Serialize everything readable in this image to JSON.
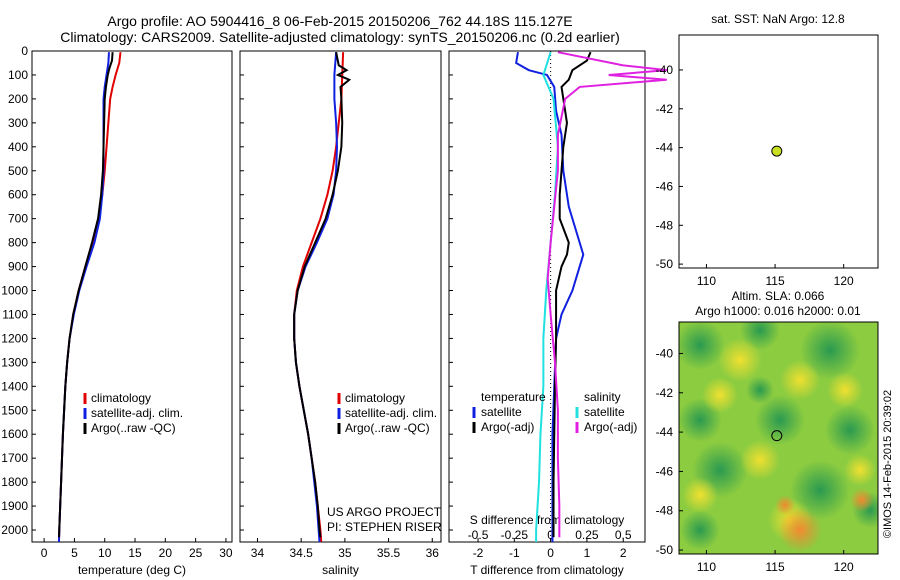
{
  "header": {
    "title_line1": "Argo profile: AO 5904416_8 06-Feb-2015 20150206_762 44.18S 115.127E",
    "title_line2": "Climatology: CARS2009. Satellite-adjusted climatology: synTS_20150206.nc (0.2d earlier)"
  },
  "colors": {
    "climatology": "#e00000",
    "satellite": "#1020e0",
    "argo": "#000000",
    "sal_satellite": "#20e0e0",
    "sal_argo": "#e020e0",
    "marker": "#c8e020"
  },
  "chart_data": [
    {
      "type": "line",
      "name": "temperature profile",
      "xlabel": "temperature (deg C)",
      "ylim": [
        2050,
        0
      ],
      "xlim": [
        -2,
        31
      ],
      "xticks": [
        "0",
        "5",
        "10",
        "15",
        "20",
        "25",
        "30"
      ],
      "yticks": [
        "0",
        "100",
        "200",
        "300",
        "400",
        "500",
        "600",
        "700",
        "800",
        "900",
        "1000",
        "1100",
        "1200",
        "1300",
        "1400",
        "1500",
        "1600",
        "1700",
        "1800",
        "1900",
        "2000"
      ],
      "legend": [
        "climatology",
        "satellite-adj. clim.",
        "Argo(..raw -QC)"
      ],
      "series": [
        {
          "name": "climatology",
          "points": [
            [
              12.6,
              5
            ],
            [
              12.4,
              50
            ],
            [
              11.8,
              100
            ],
            [
              11.3,
              150
            ],
            [
              10.9,
              200
            ],
            [
              10.6,
              300
            ],
            [
              10.3,
              400
            ],
            [
              10.0,
              500
            ],
            [
              9.6,
              600
            ],
            [
              9.0,
              700
            ],
            [
              8.0,
              800
            ],
            [
              6.8,
              900
            ],
            [
              5.7,
              1000
            ],
            [
              4.8,
              1100
            ],
            [
              4.2,
              1200
            ],
            [
              3.8,
              1300
            ],
            [
              3.5,
              1400
            ],
            [
              3.3,
              1500
            ],
            [
              3.1,
              1600
            ],
            [
              2.95,
              1700
            ],
            [
              2.8,
              1800
            ],
            [
              2.65,
              1900
            ],
            [
              2.5,
              2000
            ],
            [
              2.45,
              2050
            ]
          ]
        },
        {
          "name": "satellite-adj. clim.",
          "points": [
            [
              10.7,
              5
            ],
            [
              10.6,
              50
            ],
            [
              10.3,
              100
            ],
            [
              10.0,
              150
            ],
            [
              9.8,
              200
            ],
            [
              9.8,
              300
            ],
            [
              9.8,
              400
            ],
            [
              9.8,
              500
            ],
            [
              9.6,
              600
            ],
            [
              9.2,
              700
            ],
            [
              8.3,
              800
            ],
            [
              7.0,
              900
            ],
            [
              5.8,
              1000
            ],
            [
              4.9,
              1100
            ],
            [
              4.2,
              1200
            ],
            [
              3.8,
              1300
            ],
            [
              3.5,
              1400
            ],
            [
              3.3,
              1500
            ],
            [
              3.1,
              1600
            ],
            [
              2.95,
              1700
            ],
            [
              2.8,
              1800
            ],
            [
              2.65,
              1900
            ],
            [
              2.5,
              2000
            ],
            [
              2.45,
              2050
            ]
          ]
        },
        {
          "name": "Argo(..raw -QC)",
          "points": [
            [
              11.3,
              5
            ],
            [
              11.2,
              40
            ],
            [
              10.8,
              70
            ],
            [
              10.5,
              100
            ],
            [
              10.2,
              150
            ],
            [
              10.0,
              200
            ],
            [
              9.9,
              300
            ],
            [
              9.8,
              400
            ],
            [
              9.7,
              500
            ],
            [
              9.4,
              600
            ],
            [
              8.9,
              700
            ],
            [
              7.9,
              800
            ],
            [
              6.8,
              900
            ],
            [
              5.7,
              1000
            ],
            [
              4.8,
              1100
            ],
            [
              4.2,
              1200
            ],
            [
              3.8,
              1300
            ],
            [
              3.5,
              1400
            ],
            [
              3.3,
              1500
            ],
            [
              3.1,
              1600
            ],
            [
              2.95,
              1700
            ],
            [
              2.8,
              1800
            ],
            [
              2.65,
              1900
            ],
            [
              2.5,
              2000
            ],
            [
              2.45,
              2030
            ]
          ]
        }
      ]
    },
    {
      "type": "line",
      "name": "salinity profile",
      "xlabel": "salinity",
      "ylim": [
        2050,
        0
      ],
      "xlim": [
        33.8,
        36.1
      ],
      "xticks": [
        "34",
        "34.5",
        "35",
        "35.5",
        "36"
      ],
      "legend": [
        "climatology",
        "satellite-adj. clim.",
        "Argo(..raw -QC)"
      ],
      "annotation": [
        "US ARGO PROJECT",
        "PI: STEPHEN RISER"
      ],
      "series": [
        {
          "name": "climatology",
          "points": [
            [
              34.98,
              5
            ],
            [
              34.97,
              100
            ],
            [
              34.96,
              200
            ],
            [
              34.93,
              300
            ],
            [
              34.9,
              400
            ],
            [
              34.86,
              500
            ],
            [
              34.8,
              600
            ],
            [
              34.72,
              700
            ],
            [
              34.62,
              800
            ],
            [
              34.52,
              900
            ],
            [
              34.45,
              1000
            ],
            [
              34.42,
              1100
            ],
            [
              34.42,
              1200
            ],
            [
              34.44,
              1300
            ],
            [
              34.48,
              1400
            ],
            [
              34.53,
              1500
            ],
            [
              34.58,
              1600
            ],
            [
              34.62,
              1700
            ],
            [
              34.66,
              1800
            ],
            [
              34.69,
              1900
            ],
            [
              34.72,
              2000
            ],
            [
              34.73,
              2050
            ]
          ]
        },
        {
          "name": "satellite-adj. clim.",
          "points": [
            [
              34.9,
              5
            ],
            [
              34.88,
              100
            ],
            [
              34.88,
              200
            ],
            [
              34.9,
              300
            ],
            [
              34.91,
              400
            ],
            [
              34.9,
              500
            ],
            [
              34.87,
              600
            ],
            [
              34.8,
              700
            ],
            [
              34.68,
              800
            ],
            [
              34.55,
              900
            ],
            [
              34.46,
              1000
            ],
            [
              34.42,
              1100
            ],
            [
              34.42,
              1200
            ],
            [
              34.44,
              1300
            ],
            [
              34.48,
              1400
            ],
            [
              34.53,
              1500
            ],
            [
              34.58,
              1600
            ],
            [
              34.62,
              1700
            ],
            [
              34.65,
              1800
            ],
            [
              34.68,
              1900
            ],
            [
              34.7,
              2000
            ],
            [
              34.71,
              2050
            ]
          ]
        },
        {
          "name": "Argo(..raw -QC)",
          "points": [
            [
              34.9,
              5
            ],
            [
              34.93,
              60
            ],
            [
              35.02,
              80
            ],
            [
              34.92,
              100
            ],
            [
              35.05,
              120
            ],
            [
              34.95,
              150
            ],
            [
              34.96,
              200
            ],
            [
              34.97,
              300
            ],
            [
              34.96,
              400
            ],
            [
              34.92,
              500
            ],
            [
              34.86,
              600
            ],
            [
              34.78,
              700
            ],
            [
              34.66,
              800
            ],
            [
              34.54,
              900
            ],
            [
              34.46,
              1000
            ],
            [
              34.42,
              1100
            ],
            [
              34.42,
              1200
            ],
            [
              34.44,
              1300
            ],
            [
              34.48,
              1400
            ],
            [
              34.53,
              1500
            ],
            [
              34.58,
              1600
            ],
            [
              34.62,
              1700
            ],
            [
              34.66,
              1800
            ],
            [
              34.69,
              1900
            ],
            [
              34.71,
              2000
            ],
            [
              34.72,
              2030
            ]
          ]
        }
      ]
    },
    {
      "type": "line",
      "name": "difference from climatology",
      "xlabel": "T difference from climatology",
      "xlabel_top": "S difference from climatology",
      "ylim": [
        2050,
        0
      ],
      "xlim": [
        -2.8,
        2.6
      ],
      "xticks": [
        "-2",
        "-1",
        "0",
        "1",
        "2"
      ],
      "xticks_top": [
        "-0.5",
        "-0.25",
        "0",
        "0.25",
        "0.5"
      ],
      "legend_title_left": "temperature",
      "legend_title_right": "salinity",
      "legend": [
        "satellite",
        "Argo(-adj)",
        "satellite",
        "Argo(-adj)"
      ],
      "series": [
        {
          "name": "satellite",
          "points": [
            [
              -0.9,
              5
            ],
            [
              -0.95,
              50
            ],
            [
              -0.6,
              80
            ],
            [
              -0.1,
              100
            ],
            [
              0.1,
              150
            ],
            [
              0.15,
              250
            ],
            [
              0.3,
              350
            ],
            [
              0.35,
              500
            ],
            [
              0.5,
              650
            ],
            [
              0.7,
              750
            ],
            [
              0.9,
              850
            ],
            [
              0.6,
              1000
            ],
            [
              0.3,
              1100
            ],
            [
              0.15,
              1200
            ],
            [
              0.1,
              1400
            ],
            [
              0.05,
              1600
            ],
            [
              0.05,
              1800
            ],
            [
              0.05,
              2000
            ],
            [
              0.05,
              2050
            ]
          ]
        },
        {
          "name": "Argo(-adj)",
          "points": [
            [
              1.1,
              5
            ],
            [
              1.0,
              40
            ],
            [
              0.6,
              80
            ],
            [
              0.5,
              120
            ],
            [
              0.3,
              150
            ],
            [
              0.35,
              200
            ],
            [
              0.45,
              300
            ],
            [
              0.35,
              400
            ],
            [
              0.3,
              500
            ],
            [
              0.25,
              600
            ],
            [
              0.25,
              700
            ],
            [
              0.5,
              800
            ],
            [
              0.45,
              850
            ],
            [
              0.3,
              900
            ],
            [
              0.15,
              1000
            ],
            [
              0.15,
              1200
            ],
            [
              0.12,
              1400
            ],
            [
              0.1,
              1600
            ],
            [
              0.08,
              1800
            ],
            [
              0.08,
              2000
            ],
            [
              0.08,
              2030
            ]
          ]
        },
        {
          "name": "satellite",
          "points": [
            [
              0,
              5
            ],
            [
              -0.05,
              100
            ],
            [
              0.02,
              200
            ],
            [
              0.05,
              400
            ],
            [
              0.03,
              600
            ],
            [
              0.0,
              800
            ],
            [
              -0.03,
              1000
            ],
            [
              -0.05,
              1200
            ],
            [
              -0.05,
              1400
            ],
            [
              -0.07,
              1600
            ],
            [
              -0.08,
              1800
            ],
            [
              -0.1,
              2000
            ],
            [
              -0.1,
              2050
            ]
          ]
        },
        {
          "name": "Argo(-adj)",
          "points": [
            [
              0.05,
              5
            ],
            [
              0.5,
              60
            ],
            [
              0.8,
              80
            ],
            [
              0.4,
              100
            ],
            [
              0.8,
              120
            ],
            [
              0.2,
              150
            ],
            [
              0.1,
              200
            ],
            [
              0.05,
              350
            ],
            [
              0.05,
              500
            ],
            [
              0.0,
              800
            ],
            [
              -0.02,
              950
            ],
            [
              0.0,
              1100
            ],
            [
              0.03,
              1300
            ],
            [
              0.05,
              1500
            ],
            [
              0.05,
              1700
            ],
            [
              0.06,
              1900
            ],
            [
              0.06,
              2030
            ]
          ]
        }
      ]
    },
    {
      "type": "scatter",
      "name": "location map",
      "title": "sat. SST: NaN Argo: 12.8",
      "xlim": [
        108,
        122.5
      ],
      "ylim": [
        -50.2,
        -38.2
      ],
      "xticks": [
        "110",
        "115",
        "120"
      ],
      "yticks": [
        "-40",
        "-42",
        "-44",
        "-46",
        "-48",
        "-50"
      ],
      "points": [
        [
          115.127,
          -44.18
        ]
      ]
    },
    {
      "type": "heatmap",
      "name": "altimetry map",
      "title_line1": "Altim. SLA: 0.066",
      "title_line2": "Argo h1000: 0.016 h2000: 0.01",
      "xlim": [
        108,
        122.5
      ],
      "ylim": [
        -50.2,
        -38.4
      ],
      "xticks": [
        "110",
        "115",
        "120"
      ],
      "yticks": [
        "-40",
        "-42",
        "-44",
        "-46",
        "-48",
        "-50"
      ],
      "points": [
        [
          115.127,
          -44.18
        ]
      ]
    }
  ],
  "footer": {
    "credit": "©IMOS 14-Feb-2015 20:39:02"
  }
}
